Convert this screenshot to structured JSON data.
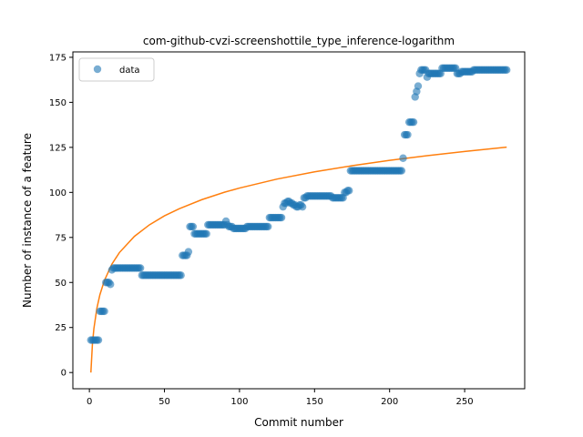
{
  "chart_data": {
    "type": "scatter",
    "title": "com-github-cvzi-screenshottile_type_inference-logarithm",
    "xlabel": "Commit number",
    "ylabel": "Number of instance of a feature",
    "xlim": [
      -11,
      290
    ],
    "ylim": [
      -9,
      178
    ],
    "xticks": [
      0,
      50,
      100,
      150,
      200,
      250
    ],
    "yticks": [
      0,
      25,
      50,
      75,
      100,
      125,
      150,
      175
    ],
    "legend": {
      "position": "top-left",
      "entries": [
        "data"
      ]
    },
    "colors": {
      "data": "#1f77b4",
      "fit": "#ff7f0e"
    },
    "series": [
      {
        "name": "data",
        "points": [
          [
            1,
            18
          ],
          [
            2,
            18
          ],
          [
            3,
            18
          ],
          [
            4,
            18
          ],
          [
            5,
            18
          ],
          [
            6,
            18
          ],
          [
            7,
            34
          ],
          [
            8,
            34
          ],
          [
            9,
            34
          ],
          [
            10,
            34
          ],
          [
            11,
            50
          ],
          [
            12,
            50
          ],
          [
            13,
            50
          ],
          [
            14,
            49
          ],
          [
            15,
            57
          ],
          [
            16,
            58
          ],
          [
            17,
            58
          ],
          [
            18,
            58
          ],
          [
            19,
            58
          ],
          [
            20,
            58
          ],
          [
            21,
            58
          ],
          [
            22,
            58
          ],
          [
            23,
            58
          ],
          [
            24,
            58
          ],
          [
            25,
            58
          ],
          [
            26,
            58
          ],
          [
            27,
            58
          ],
          [
            28,
            58
          ],
          [
            29,
            58
          ],
          [
            30,
            58
          ],
          [
            31,
            58
          ],
          [
            32,
            58
          ],
          [
            33,
            58
          ],
          [
            34,
            58
          ],
          [
            35,
            54
          ],
          [
            36,
            54
          ],
          [
            37,
            54
          ],
          [
            38,
            54
          ],
          [
            39,
            54
          ],
          [
            40,
            54
          ],
          [
            41,
            54
          ],
          [
            42,
            54
          ],
          [
            43,
            54
          ],
          [
            44,
            54
          ],
          [
            45,
            54
          ],
          [
            46,
            54
          ],
          [
            47,
            54
          ],
          [
            48,
            54
          ],
          [
            49,
            54
          ],
          [
            50,
            54
          ],
          [
            51,
            54
          ],
          [
            52,
            54
          ],
          [
            53,
            54
          ],
          [
            54,
            54
          ],
          [
            55,
            54
          ],
          [
            56,
            54
          ],
          [
            57,
            54
          ],
          [
            58,
            54
          ],
          [
            59,
            54
          ],
          [
            60,
            54
          ],
          [
            61,
            54
          ],
          [
            62,
            65
          ],
          [
            63,
            65
          ],
          [
            64,
            65
          ],
          [
            65,
            65
          ],
          [
            66,
            67
          ],
          [
            67,
            81
          ],
          [
            68,
            81
          ],
          [
            69,
            81
          ],
          [
            70,
            77
          ],
          [
            71,
            77
          ],
          [
            72,
            77
          ],
          [
            73,
            77
          ],
          [
            74,
            77
          ],
          [
            75,
            77
          ],
          [
            76,
            77
          ],
          [
            77,
            77
          ],
          [
            78,
            77
          ],
          [
            79,
            82
          ],
          [
            80,
            82
          ],
          [
            81,
            82
          ],
          [
            82,
            82
          ],
          [
            83,
            82
          ],
          [
            84,
            82
          ],
          [
            85,
            82
          ],
          [
            86,
            82
          ],
          [
            87,
            82
          ],
          [
            88,
            82
          ],
          [
            89,
            82
          ],
          [
            90,
            82
          ],
          [
            91,
            84
          ],
          [
            92,
            82
          ],
          [
            93,
            81
          ],
          [
            94,
            81
          ],
          [
            95,
            81
          ],
          [
            96,
            80
          ],
          [
            97,
            80
          ],
          [
            98,
            80
          ],
          [
            99,
            80
          ],
          [
            100,
            80
          ],
          [
            101,
            80
          ],
          [
            102,
            80
          ],
          [
            103,
            80
          ],
          [
            104,
            80
          ],
          [
            105,
            81
          ],
          [
            106,
            81
          ],
          [
            107,
            81
          ],
          [
            108,
            81
          ],
          [
            109,
            81
          ],
          [
            110,
            81
          ],
          [
            111,
            81
          ],
          [
            112,
            81
          ],
          [
            113,
            81
          ],
          [
            114,
            81
          ],
          [
            115,
            81
          ],
          [
            116,
            81
          ],
          [
            117,
            81
          ],
          [
            118,
            81
          ],
          [
            119,
            81
          ],
          [
            120,
            86
          ],
          [
            121,
            86
          ],
          [
            122,
            86
          ],
          [
            123,
            86
          ],
          [
            124,
            86
          ],
          [
            125,
            86
          ],
          [
            126,
            86
          ],
          [
            127,
            86
          ],
          [
            128,
            86
          ],
          [
            129,
            92
          ],
          [
            130,
            94
          ],
          [
            131,
            94
          ],
          [
            132,
            95
          ],
          [
            133,
            95
          ],
          [
            134,
            94
          ],
          [
            135,
            94
          ],
          [
            136,
            93
          ],
          [
            137,
            93
          ],
          [
            138,
            92
          ],
          [
            139,
            92
          ],
          [
            140,
            93
          ],
          [
            141,
            93
          ],
          [
            142,
            92
          ],
          [
            143,
            97
          ],
          [
            144,
            97
          ],
          [
            145,
            98
          ],
          [
            146,
            98
          ],
          [
            147,
            98
          ],
          [
            148,
            98
          ],
          [
            149,
            98
          ],
          [
            150,
            98
          ],
          [
            151,
            98
          ],
          [
            152,
            98
          ],
          [
            153,
            98
          ],
          [
            154,
            98
          ],
          [
            155,
            98
          ],
          [
            156,
            98
          ],
          [
            157,
            98
          ],
          [
            158,
            98
          ],
          [
            159,
            98
          ],
          [
            160,
            98
          ],
          [
            161,
            98
          ],
          [
            162,
            97
          ],
          [
            163,
            97
          ],
          [
            164,
            97
          ],
          [
            165,
            97
          ],
          [
            166,
            97
          ],
          [
            167,
            97
          ],
          [
            168,
            97
          ],
          [
            169,
            97
          ],
          [
            170,
            100
          ],
          [
            171,
            100
          ],
          [
            172,
            101
          ],
          [
            173,
            101
          ],
          [
            174,
            112
          ],
          [
            175,
            112
          ],
          [
            176,
            112
          ],
          [
            177,
            112
          ],
          [
            178,
            112
          ],
          [
            179,
            112
          ],
          [
            180,
            112
          ],
          [
            181,
            112
          ],
          [
            182,
            112
          ],
          [
            183,
            112
          ],
          [
            184,
            112
          ],
          [
            185,
            112
          ],
          [
            186,
            112
          ],
          [
            187,
            112
          ],
          [
            188,
            112
          ],
          [
            189,
            112
          ],
          [
            190,
            112
          ],
          [
            191,
            112
          ],
          [
            192,
            112
          ],
          [
            193,
            112
          ],
          [
            194,
            112
          ],
          [
            195,
            112
          ],
          [
            196,
            112
          ],
          [
            197,
            112
          ],
          [
            198,
            112
          ],
          [
            199,
            112
          ],
          [
            200,
            112
          ],
          [
            201,
            112
          ],
          [
            202,
            112
          ],
          [
            203,
            112
          ],
          [
            204,
            112
          ],
          [
            205,
            112
          ],
          [
            206,
            112
          ],
          [
            207,
            112
          ],
          [
            208,
            112
          ],
          [
            209,
            119
          ],
          [
            210,
            132
          ],
          [
            211,
            132
          ],
          [
            212,
            132
          ],
          [
            213,
            139
          ],
          [
            214,
            139
          ],
          [
            215,
            139
          ],
          [
            216,
            139
          ],
          [
            217,
            153
          ],
          [
            218,
            156
          ],
          [
            219,
            159
          ],
          [
            220,
            166
          ],
          [
            221,
            168
          ],
          [
            222,
            168
          ],
          [
            223,
            168
          ],
          [
            224,
            168
          ],
          [
            225,
            164
          ],
          [
            226,
            166
          ],
          [
            227,
            166
          ],
          [
            228,
            166
          ],
          [
            229,
            166
          ],
          [
            230,
            166
          ],
          [
            231,
            166
          ],
          [
            232,
            166
          ],
          [
            233,
            166
          ],
          [
            234,
            166
          ],
          [
            235,
            169
          ],
          [
            236,
            169
          ],
          [
            237,
            169
          ],
          [
            238,
            169
          ],
          [
            239,
            169
          ],
          [
            240,
            169
          ],
          [
            241,
            169
          ],
          [
            242,
            169
          ],
          [
            243,
            169
          ],
          [
            244,
            169
          ],
          [
            245,
            166
          ],
          [
            246,
            166
          ],
          [
            247,
            166
          ],
          [
            248,
            167
          ],
          [
            249,
            167
          ],
          [
            250,
            167
          ],
          [
            251,
            167
          ],
          [
            252,
            167
          ],
          [
            253,
            167
          ],
          [
            254,
            167
          ],
          [
            255,
            167
          ],
          [
            256,
            168
          ],
          [
            257,
            168
          ],
          [
            258,
            168
          ],
          [
            259,
            168
          ],
          [
            260,
            168
          ],
          [
            261,
            168
          ],
          [
            262,
            168
          ],
          [
            263,
            168
          ],
          [
            264,
            168
          ],
          [
            265,
            168
          ],
          [
            266,
            168
          ],
          [
            267,
            168
          ],
          [
            268,
            168
          ],
          [
            269,
            168
          ],
          [
            270,
            168
          ],
          [
            271,
            168
          ],
          [
            272,
            168
          ],
          [
            273,
            168
          ],
          [
            274,
            168
          ],
          [
            275,
            168
          ],
          [
            276,
            168
          ],
          [
            277,
            168
          ],
          [
            278,
            168
          ]
        ]
      },
      {
        "name": "",
        "curve": "logarithmic",
        "points": [
          [
            1,
            0
          ],
          [
            2,
            15.4
          ],
          [
            3,
            24.4
          ],
          [
            5,
            35.7
          ],
          [
            7,
            43.2
          ],
          [
            10,
            51.1
          ],
          [
            15,
            60.2
          ],
          [
            20,
            66.6
          ],
          [
            30,
            75.6
          ],
          [
            40,
            82.0
          ],
          [
            50,
            87.0
          ],
          [
            60,
            91.0
          ],
          [
            75,
            96.0
          ],
          [
            90,
            100.1
          ],
          [
            100,
            102.4
          ],
          [
            125,
            107.4
          ],
          [
            150,
            111.4
          ],
          [
            175,
            114.8
          ],
          [
            200,
            117.8
          ],
          [
            225,
            120.4
          ],
          [
            250,
            122.7
          ],
          [
            278,
            125.1
          ]
        ]
      }
    ]
  }
}
